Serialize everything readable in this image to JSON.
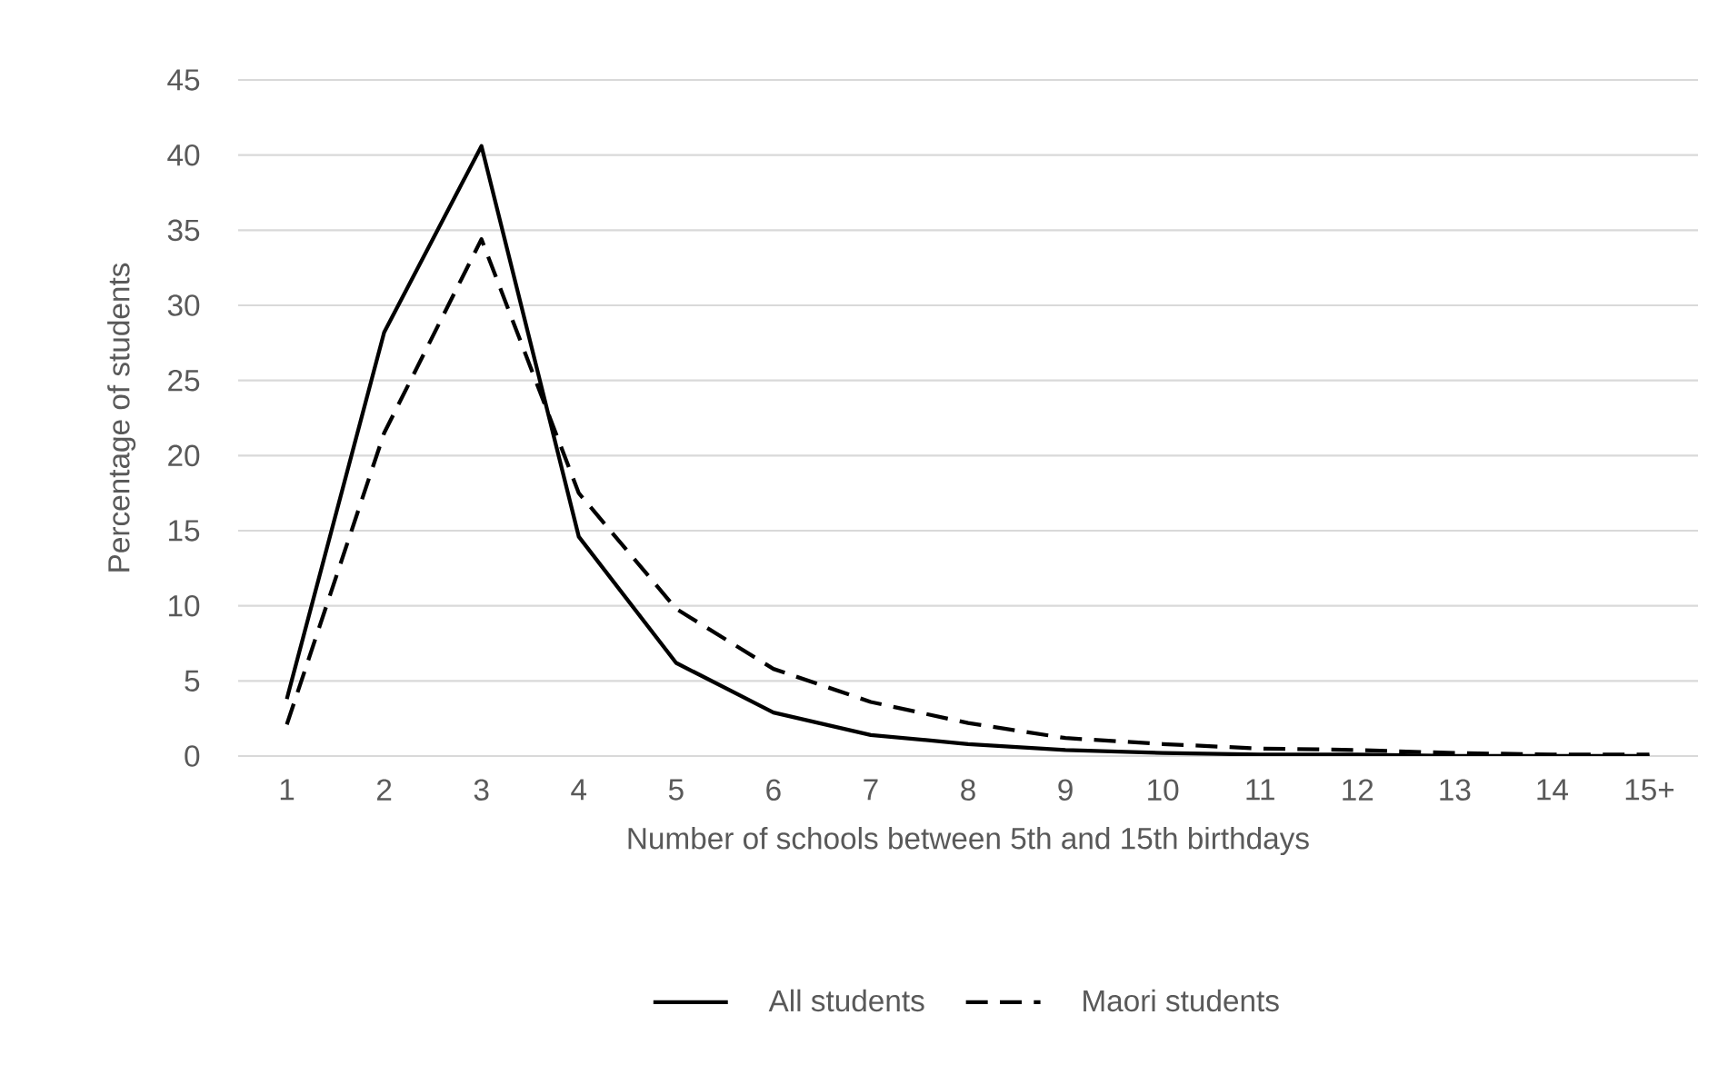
{
  "chart_data": {
    "type": "line",
    "xlabel": "Number of schools between 5th and 15th birthdays",
    "ylabel": "Percentage of students",
    "categories": [
      "1",
      "2",
      "3",
      "4",
      "5",
      "6",
      "7",
      "8",
      "9",
      "10",
      "11",
      "12",
      "13",
      "14",
      "15+"
    ],
    "series": [
      {
        "name": "All students",
        "color": "#000000",
        "line_style": "solid",
        "values": [
          3.8,
          28.2,
          40.6,
          14.6,
          6.2,
          2.9,
          1.4,
          0.8,
          0.4,
          0.2,
          0.1,
          0.1,
          0,
          0,
          0
        ]
      },
      {
        "name": "Maori students",
        "color": "#000000",
        "line_style": "dashed",
        "values": [
          2.1,
          21.5,
          34.4,
          17.5,
          9.8,
          5.8,
          3.6,
          2.2,
          1.2,
          0.8,
          0.5,
          0.4,
          0.2,
          0.1,
          0.1
        ]
      }
    ],
    "ylim": [
      0,
      45
    ],
    "yticks": [
      0,
      5,
      10,
      15,
      20,
      25,
      30,
      35,
      40,
      45
    ],
    "grid": "y",
    "legend": "bottom"
  }
}
